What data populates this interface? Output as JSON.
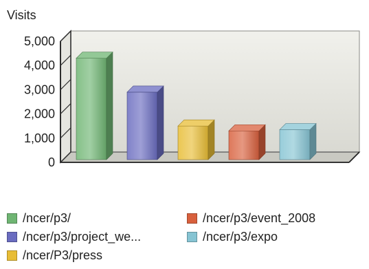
{
  "chart_data": {
    "type": "bar",
    "ylabel": "Visits",
    "ylim": [
      0,
      5000
    ],
    "yticks": [
      "5,000",
      "4,000",
      "3,000",
      "2,000",
      "1,000",
      "0"
    ],
    "grid": false,
    "legend_position": "bottom",
    "categories": [
      "/ncer/p3/",
      "/ncer/p3/project_we...",
      "/ncer/P3/press",
      "/ncer/p3/event_2008",
      "/ncer/p3/expo"
    ],
    "values": [
      4300,
      2900,
      1500,
      1300,
      1350
    ],
    "colors": [
      "#6fb573",
      "#6a6cc0",
      "#e8bd35",
      "#d8603d",
      "#86c4d3"
    ]
  },
  "legend": {
    "items": [
      {
        "label": "/ncer/p3/",
        "color": "#6fb573"
      },
      {
        "label": "/ncer/p3/event_2008",
        "color": "#d8603d"
      },
      {
        "label": "/ncer/p3/project_we...",
        "color": "#6a6cc0"
      },
      {
        "label": "/ncer/p3/expo",
        "color": "#86c4d3"
      },
      {
        "label": "/ncer/P3/press",
        "color": "#e8bd35"
      }
    ]
  }
}
